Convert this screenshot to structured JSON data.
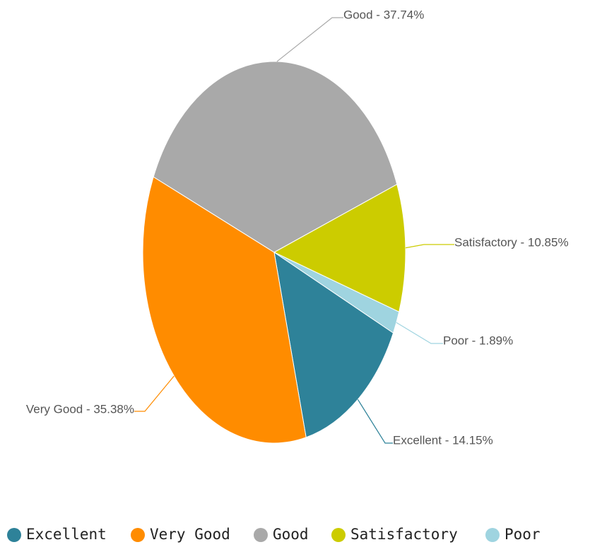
{
  "chart_data": {
    "type": "pie",
    "categories": [
      "Excellent",
      "Very Good",
      "Good",
      "Satisfactory",
      "Poor"
    ],
    "values": [
      14.15,
      35.38,
      37.74,
      10.85,
      1.89
    ],
    "value_labels": [
      "Excellent - 14.15%",
      "Very Good - 35.38%",
      "Good - 37.74%",
      "Satisfactory - 10.85%",
      "Poor - 1.89%"
    ],
    "colors": [
      "#2e8299",
      "#ff8c00",
      "#a9a9a9",
      "#cccc00",
      "#9fd4e0"
    ],
    "legend": "bottom"
  }
}
